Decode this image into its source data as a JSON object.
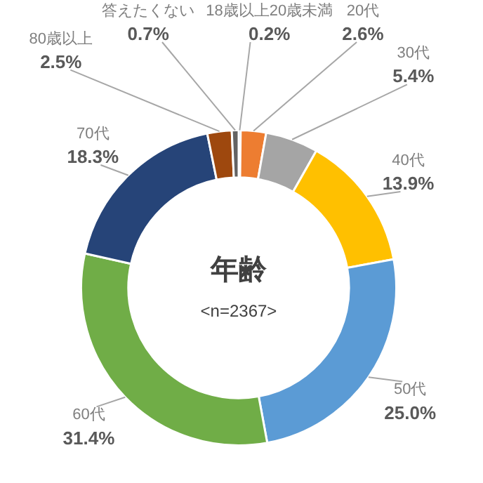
{
  "chart_data": {
    "type": "donut",
    "title": "年齢",
    "subtitle": "<n=2367>",
    "categories": [
      "18歳以上20歳未満",
      "20代",
      "30代",
      "40代",
      "50代",
      "60代",
      "70代",
      "80歳以上",
      "答えたくない"
    ],
    "values": [
      0.2,
      2.6,
      5.4,
      13.9,
      25.0,
      31.4,
      18.3,
      2.5,
      0.7
    ],
    "value_labels": [
      "0.2%",
      "2.6%",
      "5.4%",
      "13.9%",
      "25.0%",
      "31.4%",
      "18.3%",
      "2.5%",
      "0.7%"
    ],
    "colors": [
      "#4472c4",
      "#ed7d31",
      "#a5a5a5",
      "#ffc000",
      "#5b9bd5",
      "#70ad47",
      "#264478",
      "#9e480e",
      "#636363"
    ],
    "legend": false
  }
}
